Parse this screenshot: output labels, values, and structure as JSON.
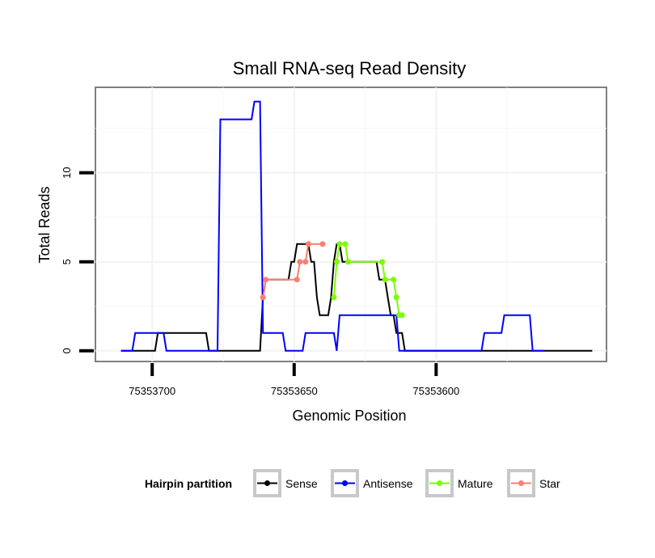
{
  "chart_data": {
    "type": "line",
    "title": "Small RNA-seq Read Density",
    "xlabel": "Genomic Position",
    "ylabel": "Total Reads",
    "xlim": [
      75353720,
      75353540
    ],
    "ylim": [
      -0.6,
      14.8
    ],
    "x_reversed": true,
    "x_ticks": [
      75353700,
      75353650,
      75353600
    ],
    "x_tick_labels": [
      "75353700",
      "75353650",
      "75353600"
    ],
    "y_ticks": [
      0,
      5,
      10
    ],
    "y_tick_labels": [
      "0",
      "5",
      "10"
    ],
    "grid": true,
    "legend": {
      "title": "Hairpin partition",
      "position": "bottom",
      "entries": [
        {
          "name": "Sense",
          "color": "#000000"
        },
        {
          "name": "Antisense",
          "color": "#0000ff"
        },
        {
          "name": "Mature",
          "color": "#7cfc00"
        },
        {
          "name": "Star",
          "color": "#fa8072"
        }
      ]
    },
    "series": [
      {
        "name": "Sense",
        "color": "#000000",
        "points": [
          [
            75353711,
            0
          ],
          [
            75353699,
            0
          ],
          [
            75353698,
            1
          ],
          [
            75353693,
            1
          ],
          [
            75353692,
            1
          ],
          [
            75353687,
            1
          ],
          [
            75353682,
            1
          ],
          [
            75353681,
            1
          ],
          [
            75353680,
            0
          ],
          [
            75353665,
            0
          ],
          [
            75353664,
            0
          ],
          [
            75353662,
            0
          ],
          [
            75353661,
            3
          ],
          [
            75353660,
            4
          ],
          [
            75353653,
            4
          ],
          [
            75353652,
            4
          ],
          [
            75353651,
            5
          ],
          [
            75353650,
            5
          ],
          [
            75353649,
            6
          ],
          [
            75353646,
            6
          ],
          [
            75353645,
            6
          ],
          [
            75353644,
            5
          ],
          [
            75353643,
            5
          ],
          [
            75353642,
            3
          ],
          [
            75353641,
            2
          ],
          [
            75353638,
            2
          ],
          [
            75353637,
            3
          ],
          [
            75353636,
            5
          ],
          [
            75353635,
            6
          ],
          [
            75353634,
            6
          ],
          [
            75353633,
            5
          ],
          [
            75353630,
            5
          ],
          [
            75353622,
            5
          ],
          [
            75353621,
            5
          ],
          [
            75353620,
            4
          ],
          [
            75353618,
            4
          ],
          [
            75353617,
            3
          ],
          [
            75353616,
            2
          ],
          [
            75353615,
            2
          ],
          [
            75353614,
            1
          ],
          [
            75353612,
            1
          ],
          [
            75353611,
            0
          ],
          [
            75353545,
            0
          ]
        ]
      },
      {
        "name": "Antisense",
        "color": "#0000ff",
        "points": [
          [
            75353711,
            0
          ],
          [
            75353707,
            0
          ],
          [
            75353706,
            1
          ],
          [
            75353696,
            1
          ],
          [
            75353695,
            0
          ],
          [
            75353687,
            0
          ],
          [
            75353683,
            0
          ],
          [
            75353677,
            0
          ],
          [
            75353676,
            13
          ],
          [
            75353673,
            13
          ],
          [
            75353665,
            13
          ],
          [
            75353664,
            14
          ],
          [
            75353662,
            14
          ],
          [
            75353662,
            14
          ],
          [
            75353661,
            1
          ],
          [
            75353654,
            1
          ],
          [
            75353653,
            0
          ],
          [
            75353649,
            0
          ],
          [
            75353647,
            0
          ],
          [
            75353646,
            1
          ],
          [
            75353641,
            1
          ],
          [
            75353636,
            1
          ],
          [
            75353635,
            0
          ],
          [
            75353634,
            2
          ],
          [
            75353614,
            2
          ],
          [
            75353613,
            0
          ],
          [
            75353584,
            0
          ],
          [
            75353583,
            1
          ],
          [
            75353577,
            1
          ],
          [
            75353576,
            2
          ],
          [
            75353567,
            2
          ],
          [
            75353566,
            0
          ],
          [
            75353562,
            0
          ]
        ]
      },
      {
        "name": "Mature",
        "color": "#7cfc00",
        "points": [
          [
            75353636,
            3
          ],
          [
            75353635,
            5
          ],
          [
            75353634,
            6
          ],
          [
            75353632,
            6
          ],
          [
            75353631,
            5
          ],
          [
            75353619,
            5
          ],
          [
            75353618,
            4
          ],
          [
            75353615,
            4
          ],
          [
            75353614,
            3
          ],
          [
            75353613,
            2
          ],
          [
            75353612,
            2
          ]
        ]
      },
      {
        "name": "Star",
        "color": "#fa8072",
        "points": [
          [
            75353661,
            3
          ],
          [
            75353660,
            4
          ],
          [
            75353649,
            4
          ],
          [
            75353648,
            5
          ],
          [
            75353646,
            5
          ],
          [
            75353645,
            6
          ],
          [
            75353640,
            6
          ]
        ]
      }
    ]
  }
}
